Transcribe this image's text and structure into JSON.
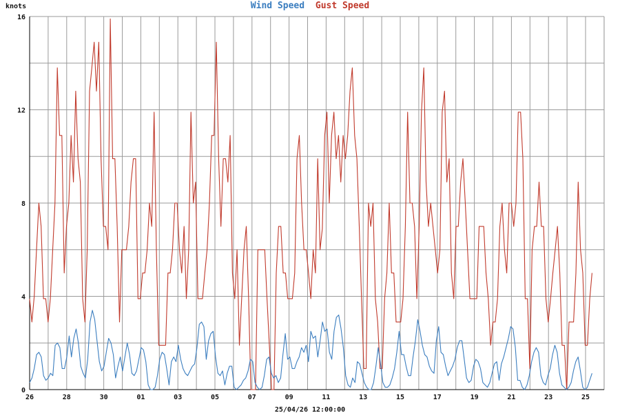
{
  "chart_data": {
    "type": "line",
    "title_parts": [
      {
        "text": "Wind Speed",
        "color": "#3a7dbf"
      },
      {
        "text": "Gust Speed",
        "color": "#c0392b"
      }
    ],
    "ylabel": "knots",
    "xlabel": "25/04/26 12:00:00",
    "ylim": [
      0,
      16
    ],
    "yticks": [
      0,
      4,
      8,
      12,
      16
    ],
    "x_range_days": [
      0,
      30.5
    ],
    "x_tick_labels": [
      "26",
      "28",
      "30",
      "01",
      "03",
      "05",
      "07",
      "09",
      "11",
      "13",
      "15",
      "17",
      "19",
      "21",
      "23",
      "25"
    ],
    "x_tick_days": [
      0,
      2,
      4,
      6,
      8,
      10,
      12,
      14,
      16,
      18,
      20,
      22,
      24,
      26,
      28,
      30
    ],
    "grid": true,
    "series": [
      {
        "name": "Wind Speed",
        "color": "#3a7dbf",
        "values": [
          0.3,
          0.5,
          0.9,
          1.5,
          1.6,
          1.4,
          0.6,
          0.4,
          0.5,
          0.7,
          0.6,
          1.9,
          2.0,
          1.8,
          0.9,
          0.9,
          1.4,
          2.3,
          1.4,
          2.2,
          2.6,
          2.0,
          1.0,
          0.7,
          0.5,
          1.3,
          2.9,
          3.4,
          3.0,
          2.1,
          1.2,
          0.8,
          1.0,
          1.6,
          2.2,
          2.0,
          1.5,
          0.5,
          1.0,
          1.4,
          0.8,
          1.4,
          2.0,
          1.5,
          0.7,
          0.6,
          0.8,
          1.3,
          1.8,
          1.7,
          1.2,
          0.2,
          0.0,
          0.0,
          0.1,
          0.6,
          1.3,
          1.6,
          1.5,
          0.9,
          0.2,
          1.2,
          1.4,
          1.2,
          1.9,
          1.3,
          0.9,
          0.7,
          0.6,
          0.8,
          1.0,
          1.1,
          1.8,
          2.8,
          2.9,
          2.7,
          1.3,
          2.1,
          2.4,
          2.5,
          1.4,
          0.7,
          0.6,
          0.8,
          0.2,
          0.7,
          1.0,
          1.0,
          0.1,
          0.0,
          0.1,
          0.2,
          0.4,
          0.5,
          0.8,
          1.3,
          1.2,
          0.3,
          0.1,
          0.0,
          0.1,
          0.6,
          1.3,
          1.4,
          0.7,
          0.5,
          0.6,
          0.3,
          0.5,
          1.5,
          2.4,
          1.3,
          1.4,
          0.9,
          0.9,
          1.2,
          1.4,
          1.8,
          1.6,
          1.9,
          1.2,
          2.5,
          2.2,
          2.3,
          1.4,
          2.1,
          2.9,
          2.5,
          2.6,
          1.6,
          1.3,
          2.5,
          3.1,
          3.2,
          2.6,
          1.8,
          0.6,
          0.2,
          0.1,
          0.5,
          0.3,
          1.2,
          1.1,
          0.7,
          0.3,
          0.1,
          0.0,
          0.0,
          0.3,
          1.0,
          1.8,
          1.1,
          0.3,
          0.1,
          0.1,
          0.2,
          0.5,
          0.9,
          1.6,
          2.5,
          1.5,
          1.5,
          1.0,
          0.6,
          0.6,
          1.4,
          2.1,
          3.0,
          2.5,
          1.9,
          1.5,
          1.4,
          1.0,
          0.8,
          0.7,
          2.1,
          2.7,
          1.6,
          1.5,
          1.0,
          0.6,
          0.8,
          1.0,
          1.3,
          1.8,
          2.1,
          2.1,
          1.3,
          0.5,
          0.3,
          0.4,
          1.0,
          1.3,
          1.2,
          0.9,
          0.3,
          0.2,
          0.1,
          0.3,
          0.7,
          1.1,
          1.2,
          0.4,
          1.1,
          1.4,
          1.8,
          2.2,
          2.7,
          2.6,
          1.8,
          0.4,
          0.4,
          0.1,
          0.0,
          0.2,
          0.6,
          1.2,
          1.6,
          1.8,
          1.6,
          0.6,
          0.3,
          0.2,
          0.6,
          0.9,
          1.5,
          1.9,
          1.6,
          0.7,
          0.2,
          0.1,
          0.0,
          0.1,
          0.3,
          0.8,
          1.2,
          1.4,
          0.8,
          0.1,
          0.0,
          0.1,
          0.4,
          0.7
        ],
        "x_end_day": 30.35
      },
      {
        "name": "Gust Speed",
        "color": "#c0392b",
        "values": [
          3.9,
          2.9,
          4.0,
          6.0,
          8.0,
          7.0,
          3.9,
          3.9,
          2.9,
          3.9,
          6.0,
          8.0,
          13.8,
          10.9,
          10.9,
          5.0,
          7.0,
          8.0,
          10.9,
          8.9,
          12.8,
          9.9,
          8.9,
          3.9,
          2.9,
          6.0,
          12.8,
          13.8,
          14.9,
          12.8,
          14.9,
          9.9,
          7.0,
          7.0,
          6.0,
          15.9,
          9.9,
          9.9,
          7.0,
          2.9,
          6.0,
          6.0,
          6.0,
          7.0,
          8.9,
          9.9,
          9.9,
          3.9,
          3.9,
          5.0,
          5.0,
          6.0,
          8.0,
          7.0,
          11.9,
          6.0,
          1.9,
          1.9,
          1.9,
          1.9,
          5.0,
          5.0,
          6.0,
          8.0,
          8.0,
          6.0,
          5.0,
          7.0,
          3.9,
          6.0,
          11.9,
          8.0,
          8.9,
          3.9,
          3.9,
          3.9,
          5.0,
          6.0,
          8.0,
          10.9,
          10.9,
          14.9,
          9.9,
          7.0,
          9.9,
          9.9,
          8.9,
          10.9,
          5.0,
          3.9,
          6.0,
          1.9,
          3.9,
          6.0,
          7.0,
          3.9,
          0.0,
          0.0,
          0.0,
          6.0,
          6.0,
          6.0,
          6.0,
          3.9,
          1.9,
          0.0,
          0.0,
          5.0,
          7.0,
          7.0,
          5.0,
          5.0,
          3.9,
          3.9,
          3.9,
          5.0,
          9.9,
          10.9,
          8.0,
          6.0,
          6.0,
          5.0,
          3.9,
          6.0,
          5.0,
          9.9,
          6.0,
          6.9,
          10.9,
          11.9,
          8.0,
          10.9,
          11.9,
          9.9,
          10.9,
          8.9,
          10.9,
          9.9,
          10.9,
          12.8,
          13.8,
          10.9,
          9.9,
          7.0,
          3.9,
          0.9,
          0.9,
          8.0,
          7.0,
          8.0,
          3.9,
          2.9,
          0.9,
          0.9,
          3.9,
          5.0,
          8.0,
          5.0,
          5.0,
          2.9,
          2.9,
          2.9,
          3.9,
          7.0,
          11.9,
          8.0,
          8.0,
          7.0,
          3.9,
          7.0,
          11.9,
          13.8,
          8.9,
          7.0,
          8.0,
          7.0,
          6.0,
          5.0,
          6.0,
          11.9,
          12.8,
          8.9,
          9.9,
          5.0,
          3.9,
          7.0,
          7.0,
          8.9,
          9.9,
          8.0,
          6.0,
          3.9,
          3.9,
          3.9,
          3.9,
          7.0,
          7.0,
          7.0,
          5.0,
          3.9,
          1.9,
          2.9,
          2.9,
          3.9,
          7.0,
          8.0,
          6.0,
          5.0,
          8.0,
          8.0,
          7.0,
          8.0,
          11.9,
          11.9,
          9.9,
          3.9,
          3.9,
          0.9,
          6.0,
          7.0,
          7.0,
          8.9,
          7.0,
          7.0,
          3.9,
          2.9,
          3.9,
          5.0,
          6.0,
          7.0,
          5.0,
          1.9,
          1.9,
          0.0,
          2.9,
          2.9,
          2.9,
          5.0,
          8.9,
          6.0,
          5.0,
          1.9,
          1.9,
          3.9,
          5.0
        ],
        "x_end_day": 30.35
      }
    ]
  }
}
